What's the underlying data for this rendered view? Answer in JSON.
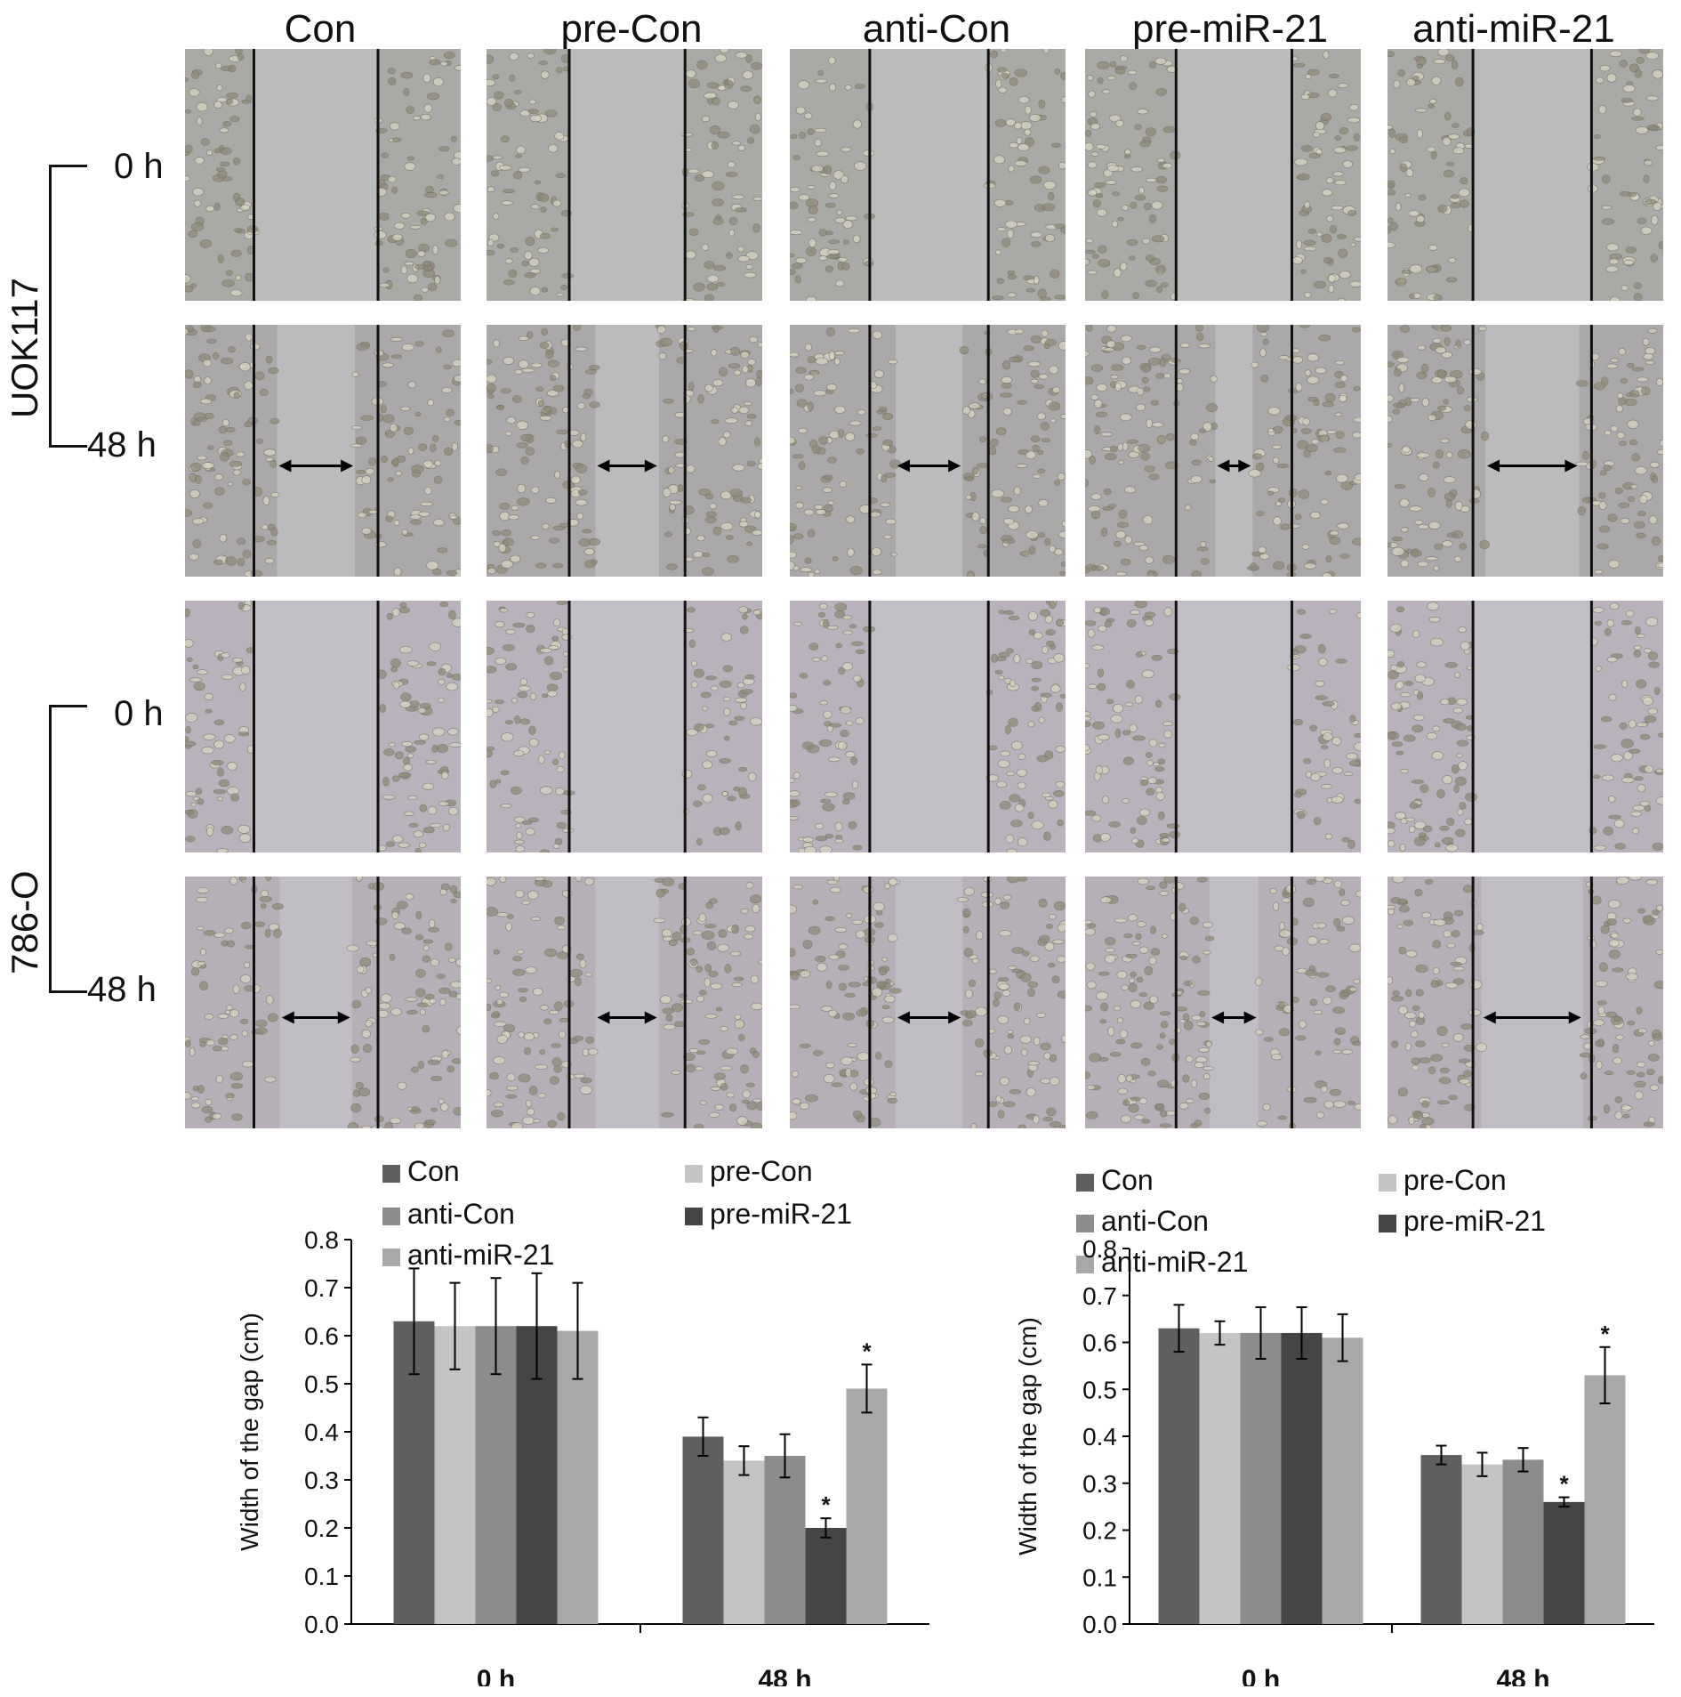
{
  "columns": [
    "Con",
    "pre-Con",
    "anti-Con",
    "pre-miR-21",
    "anti-miR-21"
  ],
  "cell_lines": [
    {
      "name": "UOK117",
      "times": [
        "0 h",
        "48 h"
      ]
    },
    {
      "name": "786-O",
      "times": [
        "0 h",
        "48 h"
      ]
    }
  ],
  "gap_fraction_48h": {
    "UOK117": [
      0.39,
      0.34,
      0.35,
      0.2,
      0.49
    ],
    "786-O": [
      0.36,
      0.34,
      0.35,
      0.26,
      0.53
    ]
  },
  "colors": {
    "Con": "#5f5f5f",
    "pre-Con": "#c4c4c4",
    "anti-Con": "#8c8c8c",
    "pre-miR-21": "#454545",
    "anti-miR-21": "#a8a8a8"
  },
  "chart_data": [
    {
      "type": "bar",
      "categories": [
        "0 h",
        "48 h"
      ],
      "ylabel": "Width of the gap (cm)",
      "ylim": [
        0,
        0.8
      ],
      "yticks": [
        "0.0",
        "0.1",
        "0.2",
        "0.3",
        "0.4",
        "0.5",
        "0.6",
        "0.7",
        "0.8"
      ],
      "legend_position": "top",
      "series": [
        {
          "name": "Con",
          "values": [
            0.63,
            0.39
          ],
          "errors": [
            0.11,
            0.04
          ],
          "sig": [
            false,
            false
          ]
        },
        {
          "name": "pre-Con",
          "values": [
            0.62,
            0.34
          ],
          "errors": [
            0.09,
            0.03
          ],
          "sig": [
            false,
            false
          ]
        },
        {
          "name": "anti-Con",
          "values": [
            0.62,
            0.35
          ],
          "errors": [
            0.1,
            0.045
          ],
          "sig": [
            false,
            false
          ]
        },
        {
          "name": "pre-miR-21",
          "values": [
            0.62,
            0.2
          ],
          "errors": [
            0.11,
            0.02
          ],
          "sig": [
            false,
            true
          ]
        },
        {
          "name": "anti-miR-21",
          "values": [
            0.61,
            0.49
          ],
          "errors": [
            0.1,
            0.05
          ],
          "sig": [
            false,
            true
          ]
        }
      ],
      "sig_mark": "*"
    },
    {
      "type": "bar",
      "categories": [
        "0 h",
        "48 h"
      ],
      "ylabel": "Width of the gap (cm)",
      "ylim": [
        0,
        0.8
      ],
      "yticks": [
        "0.0",
        "0.1",
        "0.2",
        "0.3",
        "0.4",
        "0.5",
        "0.6",
        "0.7",
        "0.8"
      ],
      "legend_position": "top",
      "series": [
        {
          "name": "Con",
          "values": [
            0.63,
            0.36
          ],
          "errors": [
            0.05,
            0.02
          ],
          "sig": [
            false,
            false
          ]
        },
        {
          "name": "pre-Con",
          "values": [
            0.62,
            0.34
          ],
          "errors": [
            0.025,
            0.025
          ],
          "sig": [
            false,
            false
          ]
        },
        {
          "name": "anti-Con",
          "values": [
            0.62,
            0.35
          ],
          "errors": [
            0.055,
            0.025
          ],
          "sig": [
            false,
            false
          ]
        },
        {
          "name": "pre-miR-21",
          "values": [
            0.62,
            0.26
          ],
          "errors": [
            0.055,
            0.01
          ],
          "sig": [
            false,
            true
          ]
        },
        {
          "name": "anti-miR-21",
          "values": [
            0.61,
            0.53
          ],
          "errors": [
            0.05,
            0.06
          ],
          "sig": [
            false,
            true
          ]
        }
      ],
      "sig_mark": "*"
    }
  ]
}
